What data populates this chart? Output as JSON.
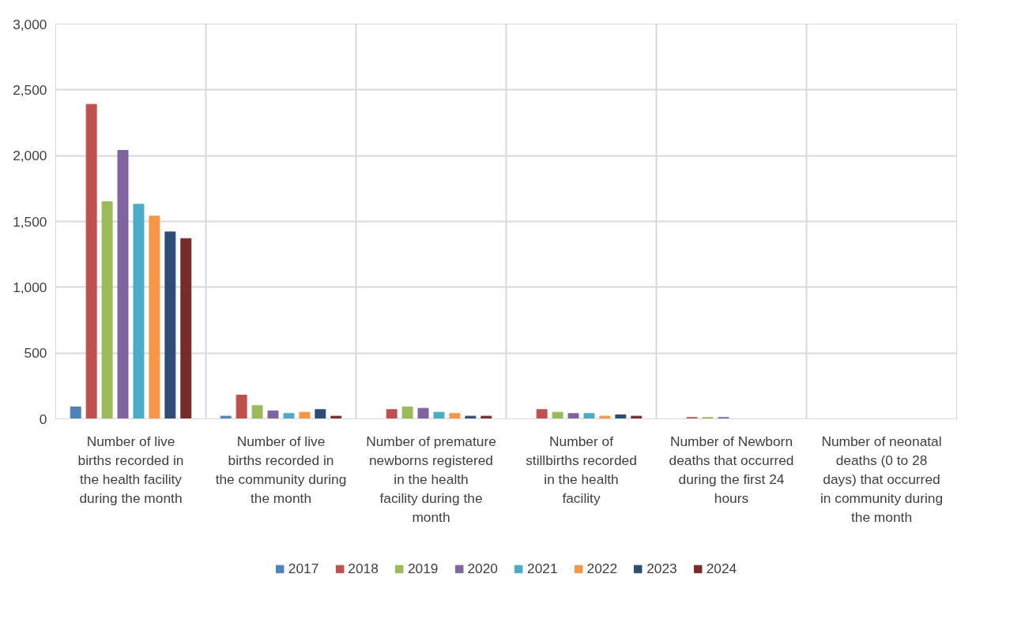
{
  "chart_data": {
    "type": "bar",
    "categories": [
      "Number of live births recorded in the health facility during the month",
      "Number of live births recorded in the community during the month",
      "Number of premature newborns registered in the health facility during the month",
      "Number of stillbirths recorded in the health facility",
      "Number of Newborn deaths that occurred during the first 24 hours",
      "Number of neonatal deaths (0 to 28 days) that occurred in community during the month"
    ],
    "series": [
      {
        "name": "2017",
        "color": "#4f81bd",
        "values": [
          90,
          20,
          0,
          0,
          0,
          0
        ]
      },
      {
        "name": "2018",
        "color": "#c0504d",
        "values": [
          2390,
          180,
          70,
          70,
          10,
          0
        ]
      },
      {
        "name": "2019",
        "color": "#9bbb59",
        "values": [
          1650,
          100,
          90,
          50,
          10,
          0
        ]
      },
      {
        "name": "2020",
        "color": "#8064a2",
        "values": [
          2040,
          60,
          80,
          40,
          10,
          0
        ]
      },
      {
        "name": "2021",
        "color": "#4bacc6",
        "values": [
          1630,
          40,
          50,
          40,
          0,
          0
        ]
      },
      {
        "name": "2022",
        "color": "#f79646",
        "values": [
          1540,
          50,
          40,
          20,
          0,
          0
        ]
      },
      {
        "name": "2023",
        "color": "#2c4d75",
        "values": [
          1420,
          70,
          20,
          30,
          0,
          0
        ]
      },
      {
        "name": "2024",
        "color": "#772c2a",
        "values": [
          1370,
          20,
          20,
          20,
          0,
          0
        ]
      }
    ],
    "ylim": [
      0,
      3000
    ],
    "yticks": [
      0,
      {
        "value": 500,
        "label": "500"
      },
      {
        "value": 1000,
        "label": "1,000"
      },
      {
        "value": 1500,
        "label": "1,500"
      },
      {
        "value": 2000,
        "label": "2,000"
      },
      {
        "value": 2500,
        "label": "2,500"
      },
      {
        "value": 3000,
        "label": "3,000"
      }
    ],
    "grid": true,
    "legend": "bottom"
  }
}
